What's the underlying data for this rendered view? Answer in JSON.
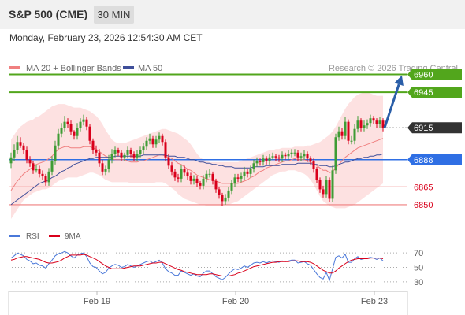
{
  "header": {
    "instrument": "S&P 500 (CME)",
    "timeframe": "30 MIN",
    "datetime": "Monday, February 23, 2026 12:54:30 AM CET"
  },
  "legend": {
    "ma20_bb": "MA 20 + Bollinger Bands",
    "ma50": "MA 50",
    "copyright": "Research © 2026 Trading Central"
  },
  "rsi_legend": {
    "rsi": "RSI",
    "ma9": "9MA"
  },
  "colors": {
    "bull": "#3f9c35",
    "bear": "#d9001b",
    "resistance": "#52a61c",
    "support_line": "#ef7f7f",
    "support_label": "#d9001b",
    "pivot": "#2f6fe4",
    "last_price_bg": "#333333",
    "bollinger_fill": "#fddcdc",
    "ma20": "#f08080",
    "ma50": "#3f4f9a",
    "rsi": "#4a78d9",
    "rsi_ma": "#d9001b",
    "arrow": "#2a5ea8"
  },
  "chart_data": [
    {
      "type": "candlestick",
      "title": "S&P 500 (CME)",
      "timeframe": "30 MIN",
      "ylim": [
        6830,
        6975
      ],
      "x_ticks": [
        "Feb 19",
        "Feb 20",
        "Feb 23"
      ],
      "levels": [
        {
          "value": 6960,
          "label": "6960",
          "kind": "resistance"
        },
        {
          "value": 6945,
          "label": "6945",
          "kind": "resistance"
        },
        {
          "value": 6915,
          "label": "6915",
          "kind": "last"
        },
        {
          "value": 6888,
          "label": "6888",
          "kind": "pivot"
        },
        {
          "value": 6865,
          "label": "6865",
          "kind": "support"
        },
        {
          "value": 6850,
          "label": "6850",
          "kind": "support"
        }
      ],
      "series": [
        {
          "name": "MA 20 + Bollinger Bands"
        },
        {
          "name": "MA 50"
        }
      ],
      "close": [
        6890,
        6896,
        6903,
        6900,
        6896,
        6888,
        6885,
        6879,
        6880,
        6876,
        6874,
        6869,
        6878,
        6887,
        6900,
        6910,
        6915,
        6920,
        6918,
        6912,
        6908,
        6915,
        6920,
        6922,
        6916,
        6904,
        6896,
        6894,
        6885,
        6878,
        6880,
        6888,
        6893,
        6896,
        6894,
        6890,
        6892,
        6896,
        6893,
        6890,
        6893,
        6896,
        6899,
        6904,
        6906,
        6901,
        6905,
        6908,
        6903,
        6890,
        6883,
        6878,
        6873,
        6872,
        6880,
        6877,
        6874,
        6870,
        6872,
        6868,
        6866,
        6872,
        6876,
        6876,
        6870,
        6863,
        6858,
        6853,
        6856,
        6862,
        6868,
        6873,
        6872,
        6874,
        6878,
        6876,
        6880,
        6885,
        6887,
        6886,
        6889,
        6887,
        6890,
        6891,
        6890,
        6889,
        6892,
        6891,
        6893,
        6894,
        6894,
        6890,
        6891,
        6893,
        6889,
        6887,
        6880,
        6871,
        6863,
        6859,
        6871,
        6855,
        6879,
        6907,
        6912,
        6908,
        6920,
        6904,
        6904,
        6914,
        6921,
        6915,
        6917,
        6919,
        6923,
        6921,
        6918,
        6921,
        6915
      ],
      "open": [
        6885,
        6890,
        6896,
        6903,
        6900,
        6896,
        6888,
        6885,
        6879,
        6880,
        6876,
        6874,
        6869,
        6878,
        6887,
        6900,
        6910,
        6915,
        6920,
        6918,
        6912,
        6908,
        6915,
        6920,
        6922,
        6916,
        6904,
        6896,
        6894,
        6885,
        6878,
        6880,
        6888,
        6893,
        6896,
        6894,
        6890,
        6892,
        6896,
        6893,
        6890,
        6893,
        6896,
        6899,
        6904,
        6906,
        6901,
        6905,
        6908,
        6903,
        6890,
        6883,
        6878,
        6873,
        6872,
        6880,
        6877,
        6874,
        6870,
        6872,
        6868,
        6866,
        6872,
        6876,
        6876,
        6870,
        6863,
        6858,
        6853,
        6856,
        6862,
        6868,
        6873,
        6872,
        6874,
        6878,
        6876,
        6880,
        6885,
        6887,
        6886,
        6889,
        6887,
        6890,
        6891,
        6890,
        6889,
        6892,
        6891,
        6893,
        6894,
        6894,
        6890,
        6891,
        6893,
        6889,
        6887,
        6880,
        6871,
        6863,
        6859,
        6871,
        6855,
        6879,
        6907,
        6912,
        6908,
        6920,
        6904,
        6904,
        6914,
        6921,
        6915,
        6917,
        6919,
        6923,
        6921,
        6918,
        6921
      ],
      "high": [
        6894,
        6901,
        6908,
        6907,
        6902,
        6899,
        6891,
        6887,
        6884,
        6883,
        6879,
        6876,
        6881,
        6891,
        6904,
        6914,
        6919,
        6925,
        6923,
        6921,
        6913,
        6919,
        6923,
        6926,
        6924,
        6918,
        6906,
        6900,
        6897,
        6888,
        6883,
        6892,
        6897,
        6899,
        6898,
        6896,
        6894,
        6899,
        6898,
        6895,
        6896,
        6899,
        6902,
        6907,
        6910,
        6908,
        6908,
        6911,
        6910,
        6905,
        6893,
        6886,
        6880,
        6876,
        6884,
        6883,
        6880,
        6877,
        6875,
        6874,
        6870,
        6875,
        6879,
        6880,
        6878,
        6872,
        6865,
        6860,
        6859,
        6865,
        6871,
        6876,
        6876,
        6877,
        6882,
        6880,
        6883,
        6888,
        6890,
        6889,
        6892,
        6891,
        6893,
        6894,
        6893,
        6892,
        6895,
        6894,
        6896,
        6897,
        6897,
        6896,
        6894,
        6896,
        6895,
        6891,
        6889,
        6882,
        6873,
        6866,
        6874,
        6873,
        6883,
        6910,
        6916,
        6915,
        6924,
        6922,
        6908,
        6918,
        6925,
        6923,
        6921,
        6922,
        6926,
        6925,
        6923,
        6924,
        6923
      ],
      "low": [
        6881,
        6887,
        6893,
        6898,
        6893,
        6885,
        6882,
        6876,
        6877,
        6873,
        6871,
        6866,
        6866,
        6875,
        6884,
        6897,
        6907,
        6912,
        6915,
        6909,
        6905,
        6905,
        6912,
        6917,
        6913,
        6901,
        6893,
        6891,
        6882,
        6875,
        6875,
        6877,
        6885,
        6890,
        6891,
        6887,
        6887,
        6889,
        6890,
        6887,
        6887,
        6890,
        6893,
        6896,
        6901,
        6898,
        6898,
        6902,
        6900,
        6887,
        6880,
        6875,
        6870,
        6869,
        6869,
        6874,
        6871,
        6867,
        6867,
        6865,
        6863,
        6863,
        6869,
        6873,
        6867,
        6860,
        6855,
        6849,
        6850,
        6853,
        6859,
        6865,
        6869,
        6869,
        6871,
        6873,
        6873,
        6877,
        6882,
        6883,
        6883,
        6884,
        6884,
        6888,
        6887,
        6886,
        6886,
        6888,
        6888,
        6890,
        6891,
        6887,
        6887,
        6888,
        6886,
        6884,
        6877,
        6868,
        6860,
        6856,
        6856,
        6852,
        6852,
        6876,
        6904,
        6905,
        6905,
        6901,
        6901,
        6901,
        6911,
        6912,
        6912,
        6914,
        6916,
        6918,
        6915,
        6915,
        6912
      ],
      "ma20": [
        6862,
        6866,
        6870,
        6873,
        6876,
        6878,
        6880,
        6882,
        6884,
        6885,
        6886,
        6887,
        6889,
        6891,
        6894,
        6897,
        6898,
        6899,
        6899,
        6898,
        6898,
        6898,
        6898,
        6899,
        6899,
        6899,
        6898,
        6897,
        6895,
        6893,
        6891,
        6890,
        6889,
        6888,
        6888,
        6888,
        6888,
        6887,
        6886,
        6886,
        6886,
        6887,
        6887,
        6888,
        6889,
        6890,
        6891,
        6892,
        6892,
        6891,
        6890,
        6889,
        6887,
        6885,
        6884,
        6882,
        6880,
        6879,
        6877,
        6875,
        6874,
        6873,
        6872,
        6871,
        6871,
        6870,
        6869,
        6868,
        6868,
        6868,
        6868,
        6868,
        6868,
        6869,
        6870,
        6871,
        6873,
        6874,
        6876,
        6878,
        6879,
        6881,
        6882,
        6883,
        6884,
        6885,
        6886,
        6887,
        6887,
        6888,
        6889,
        6888,
        6888,
        6888,
        6887,
        6886,
        6885,
        6883,
        6881,
        6879,
        6879,
        6877,
        6878,
        6881,
        6884,
        6887,
        6890,
        6892,
        6894,
        6896,
        6898,
        6899,
        6900,
        6901,
        6902,
        6903,
        6904,
        6905,
        6906
      ],
      "ma50": [
        6850,
        6852,
        6854,
        6856,
        6858,
        6860,
        6862,
        6864,
        6866,
        6868,
        6869,
        6870,
        6871,
        6873,
        6874,
        6876,
        6878,
        6879,
        6881,
        6882,
        6884,
        6885,
        6886,
        6887,
        6888,
        6889,
        6889,
        6890,
        6890,
        6890,
        6890,
        6890,
        6890,
        6891,
        6891,
        6891,
        6891,
        6891,
        6891,
        6891,
        6891,
        6891,
        6892,
        6892,
        6892,
        6892,
        6892,
        6892,
        6892,
        6892,
        6891,
        6891,
        6891,
        6890,
        6890,
        6890,
        6889,
        6888,
        6888,
        6887,
        6886,
        6886,
        6885,
        6885,
        6884,
        6884,
        6883,
        6883,
        6882,
        6882,
        6882,
        6881,
        6881,
        6881,
        6881,
        6881,
        6881,
        6882,
        6882,
        6882,
        6882,
        6883,
        6883,
        6883,
        6883,
        6883,
        6884,
        6884,
        6884,
        6884,
        6884,
        6885,
        6885,
        6885,
        6885,
        6885,
        6884,
        6884,
        6883,
        6883,
        6883,
        6882,
        6882,
        6883,
        6884,
        6885,
        6886,
        6886,
        6887,
        6888,
        6889,
        6889,
        6890,
        6890,
        6891,
        6891,
        6892,
        6892,
        6893
      ],
      "bb_upper": [
        6905,
        6909,
        6913,
        6916,
        6918,
        6920,
        6921,
        6922,
        6924,
        6925,
        6927,
        6929,
        6931,
        6933,
        6934,
        6935,
        6935,
        6935,
        6934,
        6933,
        6932,
        6932,
        6932,
        6931,
        6930,
        6929,
        6927,
        6925,
        6922,
        6918,
        6913,
        6909,
        6905,
        6903,
        6902,
        6902,
        6902,
        6903,
        6904,
        6905,
        6906,
        6907,
        6908,
        6909,
        6910,
        6911,
        6912,
        6913,
        6914,
        6914,
        6913,
        6912,
        6911,
        6910,
        6908,
        6906,
        6904,
        6901,
        6897,
        6893,
        6890,
        6888,
        6887,
        6886,
        6886,
        6886,
        6886,
        6886,
        6886,
        6886,
        6886,
        6886,
        6886,
        6887,
        6888,
        6889,
        6890,
        6891,
        6892,
        6893,
        6894,
        6895,
        6896,
        6896,
        6897,
        6897,
        6898,
        6898,
        6898,
        6898,
        6899,
        6899,
        6899,
        6899,
        6900,
        6900,
        6901,
        6902,
        6903,
        6905,
        6907,
        6909,
        6912,
        6916,
        6921,
        6926,
        6931,
        6935,
        6938,
        6941,
        6943,
        6944,
        6945,
        6945,
        6944,
        6943,
        6942,
        6942,
        6942
      ],
      "bb_lower": [
        6838,
        6842,
        6846,
        6850,
        6854,
        6856,
        6858,
        6860,
        6861,
        6862,
        6863,
        6863,
        6864,
        6866,
        6868,
        6870,
        6871,
        6872,
        6873,
        6873,
        6873,
        6873,
        6874,
        6875,
        6876,
        6877,
        6877,
        6876,
        6875,
        6873,
        6871,
        6870,
        6869,
        6869,
        6869,
        6869,
        6869,
        6869,
        6868,
        6868,
        6868,
        6868,
        6868,
        6868,
        6868,
        6868,
        6869,
        6869,
        6869,
        6868,
        6866,
        6864,
        6862,
        6859,
        6857,
        6855,
        6854,
        6853,
        6852,
        6851,
        6850,
        6850,
        6849,
        6849,
        6849,
        6849,
        6849,
        6849,
        6850,
        6850,
        6851,
        6852,
        6853,
        6855,
        6857,
        6859,
        6861,
        6863,
        6865,
        6867,
        6869,
        6871,
        6873,
        6875,
        6876,
        6877,
        6878,
        6878,
        6879,
        6879,
        6879,
        6878,
        6877,
        6876,
        6874,
        6871,
        6867,
        6862,
        6857,
        6853,
        6851,
        6849,
        6848,
        6847,
        6847,
        6847,
        6847,
        6848,
        6849,
        6850,
        6852,
        6854,
        6856,
        6858,
        6860,
        6862,
        6864,
        6866,
        6868
      ],
      "forecast": {
        "from": 6915,
        "to": 6960
      }
    },
    {
      "type": "line",
      "title": "RSI",
      "ylim": [
        20,
        80
      ],
      "y_ticks": [
        70,
        50,
        30
      ],
      "series": [
        {
          "name": "RSI",
          "values": [
            63,
            66,
            70,
            68,
            66,
            61,
            59,
            55,
            56,
            53,
            52,
            49,
            55,
            60,
            66,
            69,
            70,
            72,
            70,
            66,
            63,
            67,
            69,
            70,
            65,
            56,
            51,
            50,
            45,
            41,
            43,
            49,
            52,
            54,
            53,
            50,
            51,
            54,
            52,
            50,
            52,
            54,
            56,
            58,
            59,
            56,
            58,
            60,
            56,
            48,
            44,
            42,
            39,
            39,
            45,
            43,
            41,
            39,
            41,
            38,
            37,
            42,
            45,
            45,
            41,
            37,
            35,
            33,
            36,
            41,
            45,
            48,
            47,
            49,
            52,
            50,
            53,
            56,
            57,
            56,
            58,
            56,
            58,
            59,
            58,
            57,
            59,
            58,
            59,
            60,
            60,
            56,
            57,
            58,
            55,
            53,
            47,
            41,
            36,
            34,
            43,
            32,
            48,
            64,
            66,
            63,
            68,
            57,
            57,
            62,
            65,
            61,
            62,
            63,
            64,
            63,
            61,
            63,
            59
          ]
        },
        {
          "name": "9MA",
          "values": [
            60,
            61,
            63,
            64,
            65,
            65,
            64,
            63,
            62,
            61,
            59,
            57,
            56,
            56,
            57,
            58,
            60,
            63,
            65,
            67,
            67,
            67,
            67,
            68,
            67,
            65,
            63,
            61,
            58,
            55,
            52,
            50,
            48,
            48,
            48,
            48,
            49,
            50,
            51,
            52,
            52,
            52,
            53,
            54,
            55,
            56,
            56,
            57,
            57,
            55,
            53,
            51,
            49,
            47,
            46,
            44,
            43,
            42,
            41,
            40,
            40,
            40,
            40,
            41,
            41,
            40,
            39,
            38,
            38,
            38,
            39,
            40,
            42,
            43,
            45,
            47,
            49,
            51,
            52,
            53,
            54,
            55,
            56,
            57,
            57,
            58,
            58,
            58,
            58,
            59,
            59,
            59,
            58,
            58,
            58,
            57,
            55,
            52,
            49,
            46,
            44,
            42,
            42,
            45,
            49,
            52,
            55,
            58,
            60,
            61,
            62,
            62,
            62,
            62,
            63,
            63,
            63,
            63,
            62
          ]
        }
      ]
    }
  ]
}
